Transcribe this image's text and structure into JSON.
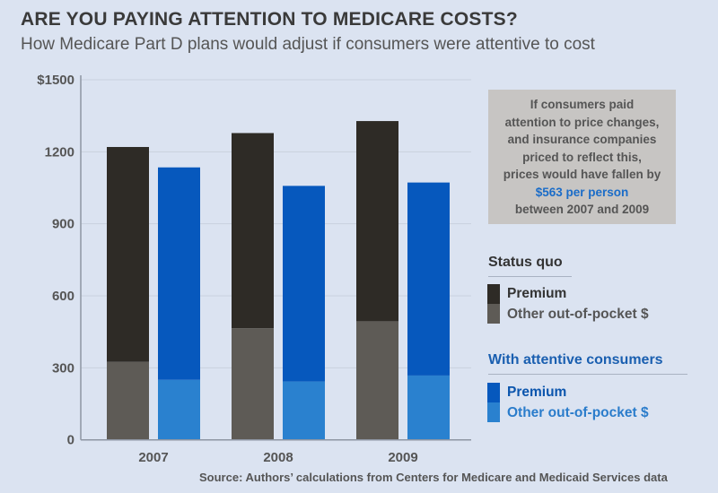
{
  "title": "ARE YOU PAYING ATTENTION TO MEDICARE COSTS?",
  "subtitle": "How Medicare Part D plans would adjust if consumers were attentive to cost",
  "callout": {
    "lines": [
      "If consumers paid",
      "attention to price changes,",
      "and insurance companies",
      "priced to reflect this,",
      "prices would have fallen by"
    ],
    "highlight": "$563 per person",
    "tail": "between 2007 and 2009"
  },
  "legend": {
    "status_quo": {
      "heading": "Status quo",
      "premium": "Premium",
      "oop": "Other out-of-pocket $"
    },
    "attentive": {
      "heading": "With attentive consumers",
      "premium": "Premium",
      "oop": "Other out-of-pocket $"
    }
  },
  "source": "Source: Authors’ calculations from Centers for Medicare and Medicaid Services data",
  "colors": {
    "background": "#dbe3f1",
    "sq_premium": "#2e2b26",
    "sq_oop": "#5e5b56",
    "att_premium": "#0658bd",
    "att_oop": "#2a81cf",
    "gridline": "#c9d1de",
    "axis": "#8e96a3"
  },
  "chart_data": {
    "type": "bar",
    "stacked": true,
    "grouped": true,
    "title": "ARE YOU PAYING ATTENTION TO MEDICARE COSTS?",
    "subtitle": "How Medicare Part D plans would adjust if consumers were attentive to cost",
    "xlabel": "",
    "ylabel": "",
    "categories": [
      "2007",
      "2008",
      "2009"
    ],
    "ylim": [
      0,
      1500
    ],
    "yticks": [
      0,
      300,
      600,
      900,
      1200,
      1500
    ],
    "ytick_labels": [
      "0",
      "300",
      "600",
      "900",
      "1200",
      "$1500"
    ],
    "grid": true,
    "legend_position": "right",
    "groups": [
      {
        "name": "Status quo",
        "series": [
          {
            "name": "Other out-of-pocket $",
            "values": [
              325,
              465,
              494
            ]
          },
          {
            "name": "Premium",
            "values": [
              895,
              813,
              834
            ]
          }
        ],
        "totals": [
          1220,
          1278,
          1328
        ]
      },
      {
        "name": "With attentive consumers",
        "series": [
          {
            "name": "Other out-of-pocket $",
            "values": [
              250,
              243,
              268
            ]
          },
          {
            "name": "Premium",
            "values": [
              885,
              815,
              804
            ]
          }
        ],
        "totals": [
          1135,
          1058,
          1072
        ]
      }
    ]
  }
}
